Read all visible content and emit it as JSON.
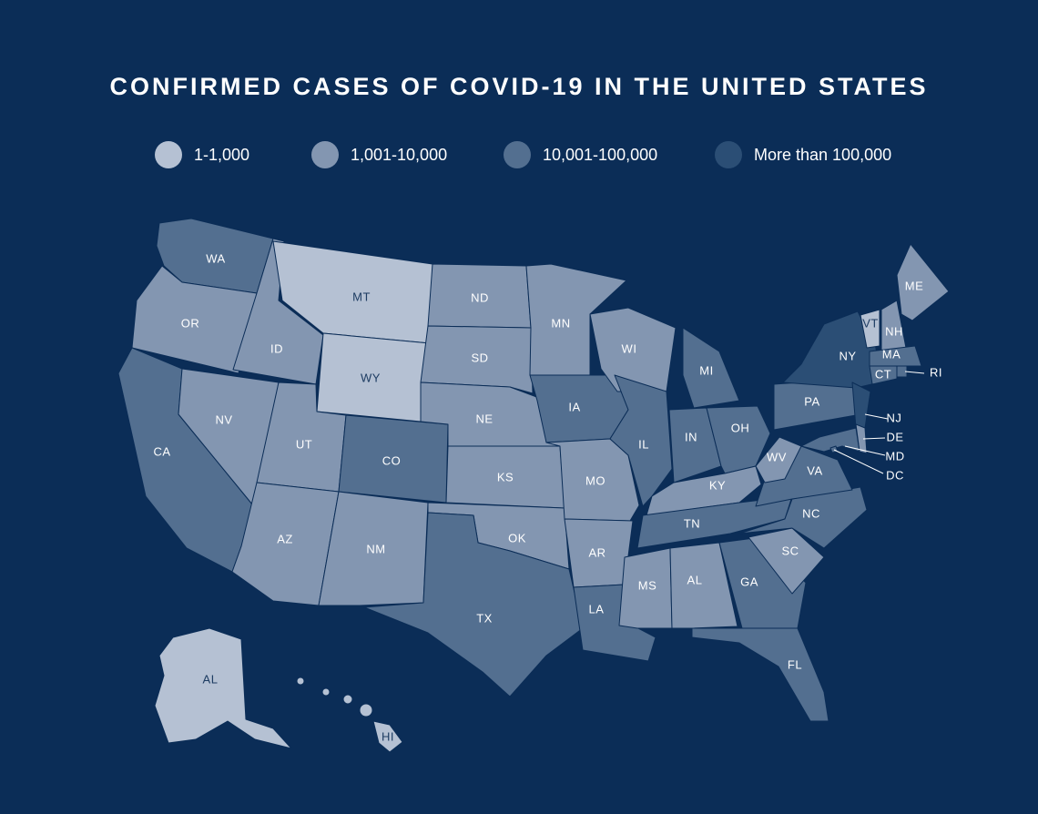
{
  "title": "CONFIRMED CASES OF COVID-19 IN THE UNITED STATES",
  "legend": [
    {
      "label": "1-1,000",
      "color": "#b5c1d3"
    },
    {
      "label": "1,001-10,000",
      "color": "#8396b1"
    },
    {
      "label": "10,001-100,000",
      "color": "#536f90"
    },
    {
      "label": "More than 100,000",
      "color": "#2b4e75"
    }
  ],
  "states": [
    {
      "label": "WA",
      "level": 2
    },
    {
      "label": "OR",
      "level": 1
    },
    {
      "label": "CA",
      "level": 2
    },
    {
      "label": "NV",
      "level": 1
    },
    {
      "label": "ID",
      "level": 1
    },
    {
      "label": "MT",
      "level": 0
    },
    {
      "label": "WY",
      "level": 0
    },
    {
      "label": "UT",
      "level": 1
    },
    {
      "label": "CO",
      "level": 2
    },
    {
      "label": "AZ",
      "level": 1
    },
    {
      "label": "NM",
      "level": 1
    },
    {
      "label": "ND",
      "level": 1
    },
    {
      "label": "SD",
      "level": 1
    },
    {
      "label": "NE",
      "level": 1
    },
    {
      "label": "KS",
      "level": 1
    },
    {
      "label": "OK",
      "level": 1
    },
    {
      "label": "TX",
      "level": 2
    },
    {
      "label": "MN",
      "level": 1
    },
    {
      "label": "IA",
      "level": 2
    },
    {
      "label": "MO",
      "level": 1
    },
    {
      "label": "AR",
      "level": 1
    },
    {
      "label": "LA",
      "level": 2
    },
    {
      "label": "WI",
      "level": 1
    },
    {
      "label": "IL",
      "level": 2
    },
    {
      "label": "IN",
      "level": 2
    },
    {
      "label": "MI",
      "level": 2
    },
    {
      "label": "OH",
      "level": 2
    },
    {
      "label": "KY",
      "level": 1
    },
    {
      "label": "TN",
      "level": 2
    },
    {
      "label": "MS",
      "level": 1
    },
    {
      "label": "AL",
      "level": 1
    },
    {
      "label": "GA",
      "level": 2
    },
    {
      "label": "FL",
      "level": 2
    },
    {
      "label": "SC",
      "level": 1
    },
    {
      "label": "NC",
      "level": 2
    },
    {
      "label": "VA",
      "level": 2
    },
    {
      "label": "WV",
      "level": 1
    },
    {
      "label": "PA",
      "level": 2
    },
    {
      "label": "NY",
      "level": 3
    },
    {
      "label": "NJ",
      "level": 3
    },
    {
      "label": "DE",
      "level": 1
    },
    {
      "label": "MD",
      "level": 2
    },
    {
      "label": "DC",
      "level": 2
    },
    {
      "label": "VT",
      "level": 0
    },
    {
      "label": "NH",
      "level": 1
    },
    {
      "label": "ME",
      "level": 1
    },
    {
      "label": "MA",
      "level": 2
    },
    {
      "label": "CT",
      "level": 2
    },
    {
      "label": "RI",
      "level": 2
    },
    {
      "label": "AL",
      "level": 0
    },
    {
      "label": "HI",
      "level": 0
    }
  ]
}
